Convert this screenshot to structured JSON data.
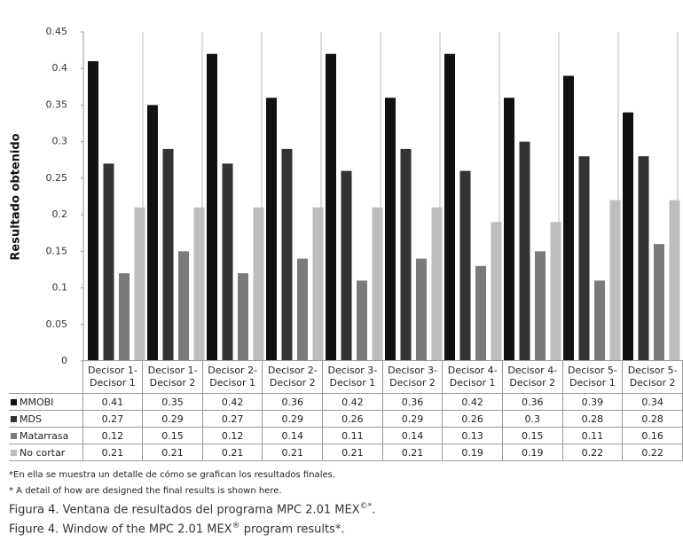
{
  "chart_data": {
    "type": "bar",
    "y_label": "Resultado obtenido",
    "categories": [
      "Decisor 1- Decisor 1",
      "Decisor 1- Decisor 2",
      "Decisor 2- Decisor 1",
      "Decisor 2- Decisor 2",
      "Decisor 3- Decisor 1",
      "Decisor 3- Decisor 2",
      "Decisor 4- Decisor 1",
      "Decisor 4- Decisor 2",
      "Decisor 5- Decisor 1",
      "Decisor 5- Decisor 2"
    ],
    "series": [
      {
        "name": "MMOBI",
        "color": "#111111",
        "values": [
          0.41,
          0.35,
          0.42,
          0.36,
          0.42,
          0.36,
          0.42,
          0.36,
          0.39,
          0.34
        ]
      },
      {
        "name": "MDS",
        "color": "#333333",
        "values": [
          0.27,
          0.29,
          0.27,
          0.29,
          0.26,
          0.29,
          0.26,
          0.3,
          0.28,
          0.28
        ]
      },
      {
        "name": "Matarrasa",
        "color": "#7a7a7a",
        "values": [
          0.12,
          0.15,
          0.12,
          0.14,
          0.11,
          0.14,
          0.13,
          0.15,
          0.11,
          0.16
        ]
      },
      {
        "name": "No cortar",
        "color": "#bdbdbd",
        "values": [
          0.21,
          0.21,
          0.21,
          0.21,
          0.21,
          0.21,
          0.19,
          0.19,
          0.22,
          0.22
        ]
      }
    ],
    "ylim": [
      0,
      0.45
    ],
    "yticks": [
      0,
      0.05,
      0.1,
      0.15,
      0.2,
      0.25,
      0.3,
      0.35,
      0.4,
      0.45
    ]
  },
  "notes": {
    "note_es": "*En ella se muestra un detalle de cómo se grafican los resultados finales.",
    "note_en": "* A detail of how are designed the final results is shown here.",
    "caption_es": {
      "text": "Figura 4. Ventana de resultados del programa MPC 2.01 MEX",
      "sup": "©*",
      "end": "."
    },
    "caption_en": {
      "text": "Figure 4. Window of the MPC 2.01 MEX",
      "sup": "®",
      "end": " program results*."
    }
  }
}
